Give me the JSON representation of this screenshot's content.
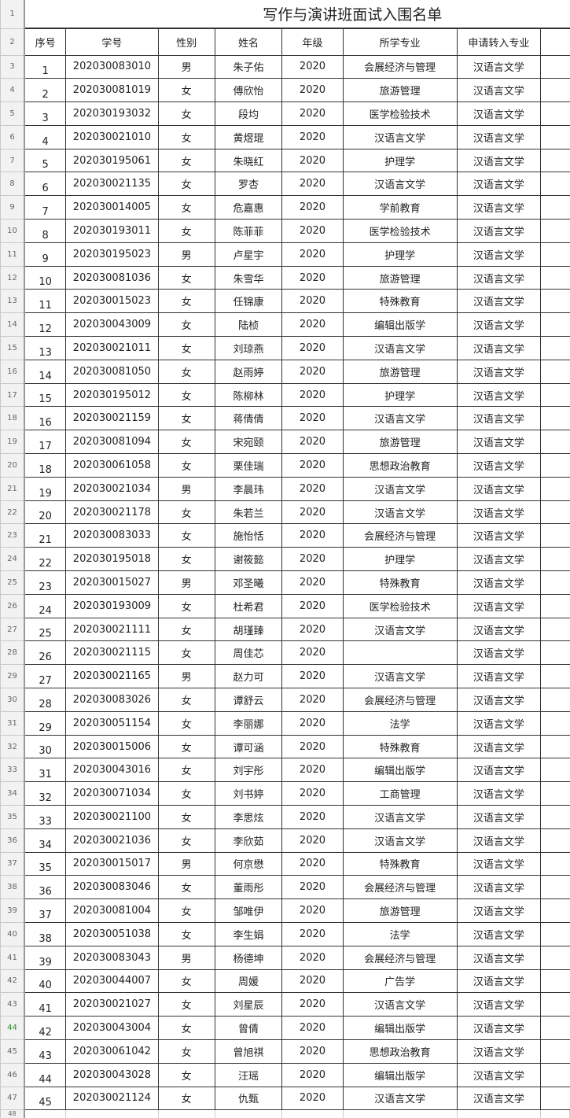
{
  "title": "写作与演讲班面试入围名单",
  "headers": [
    "序号",
    "学号",
    "性别",
    "姓名",
    "年级",
    "所学专业",
    "申请转入专业"
  ],
  "selected_row": 44,
  "selected_row_color": "#2e8b2e",
  "rows": [
    [
      "1",
      "202030083010",
      "男",
      "朱子佑",
      "2020",
      "会展经济与管理",
      "汉语言文学"
    ],
    [
      "2",
      "202030081019",
      "女",
      "傅欣怡",
      "2020",
      "旅游管理",
      "汉语言文学"
    ],
    [
      "3",
      "202030193032",
      "女",
      "段均",
      "2020",
      "医学检验技术",
      "汉语言文学"
    ],
    [
      "4",
      "202030021010",
      "女",
      "黄煜琨",
      "2020",
      "汉语言文学",
      "汉语言文学"
    ],
    [
      "5",
      "202030195061",
      "女",
      "朱晓红",
      "2020",
      "护理学",
      "汉语言文学"
    ],
    [
      "6",
      "202030021135",
      "女",
      "罗杏",
      "2020",
      "汉语言文学",
      "汉语言文学"
    ],
    [
      "7",
      "202030014005",
      "女",
      "危嘉惠",
      "2020",
      "学前教育",
      "汉语言文学"
    ],
    [
      "8",
      "202030193011",
      "女",
      "陈菲菲",
      "2020",
      "医学检验技术",
      "汉语言文学"
    ],
    [
      "9",
      "202030195023",
      "男",
      "卢星宇",
      "2020",
      "护理学",
      "汉语言文学"
    ],
    [
      "10",
      "202030081036",
      "女",
      "朱雪华",
      "2020",
      "旅游管理",
      "汉语言文学"
    ],
    [
      "11",
      "202030015023",
      "女",
      "任锦康",
      "2020",
      "特殊教育",
      "汉语言文学"
    ],
    [
      "12",
      "202030043009",
      "女",
      "陆桢",
      "2020",
      "编辑出版学",
      "汉语言文学"
    ],
    [
      "13",
      "202030021011",
      "女",
      "刘琼燕",
      "2020",
      "汉语言文学",
      "汉语言文学"
    ],
    [
      "14",
      "202030081050",
      "女",
      "赵雨婷",
      "2020",
      "旅游管理",
      "汉语言文学"
    ],
    [
      "15",
      "202030195012",
      "女",
      "陈柳林",
      "2020",
      "护理学",
      "汉语言文学"
    ],
    [
      "16",
      "202030021159",
      "女",
      "蒋倩倩",
      "2020",
      "汉语言文学",
      "汉语言文学"
    ],
    [
      "17",
      "202030081094",
      "女",
      "宋宛颐",
      "2020",
      "旅游管理",
      "汉语言文学"
    ],
    [
      "18",
      "202030061058",
      "女",
      "栗佳瑞",
      "2020",
      "思想政治教育",
      "汉语言文学"
    ],
    [
      "19",
      "202030021034",
      "男",
      "李晨玮",
      "2020",
      "汉语言文学",
      "汉语言文学"
    ],
    [
      "20",
      "202030021178",
      "女",
      "朱若兰",
      "2020",
      "汉语言文学",
      "汉语言文学"
    ],
    [
      "21",
      "202030083033",
      "女",
      "施怡恬",
      "2020",
      "会展经济与管理",
      "汉语言文学"
    ],
    [
      "22",
      "202030195018",
      "女",
      "谢筱懿",
      "2020",
      "护理学",
      "汉语言文学"
    ],
    [
      "23",
      "202030015027",
      "男",
      "邓圣曦",
      "2020",
      "特殊教育",
      "汉语言文学"
    ],
    [
      "24",
      "202030193009",
      "女",
      "杜希君",
      "2020",
      "医学检验技术",
      "汉语言文学"
    ],
    [
      "25",
      "202030021111",
      "女",
      "胡瑾臻",
      "2020",
      "汉语言文学",
      "汉语言文学"
    ],
    [
      "26",
      "202030021115",
      "女",
      "周佳芯",
      "2020",
      "",
      "汉语言文学"
    ],
    [
      "27",
      "202030021165",
      "男",
      "赵力可",
      "2020",
      "汉语言文学",
      "汉语言文学"
    ],
    [
      "28",
      "202030083026",
      "女",
      "谭舒云",
      "2020",
      "会展经济与管理",
      "汉语言文学"
    ],
    [
      "29",
      "202030051154",
      "女",
      "李丽娜",
      "2020",
      "法学",
      "汉语言文学"
    ],
    [
      "30",
      "202030015006",
      "女",
      "谭可涵",
      "2020",
      "特殊教育",
      "汉语言文学"
    ],
    [
      "31",
      "202030043016",
      "女",
      "刘宇彤",
      "2020",
      "编辑出版学",
      "汉语言文学"
    ],
    [
      "32",
      "202030071034",
      "女",
      "刘书婷",
      "2020",
      "工商管理",
      "汉语言文学"
    ],
    [
      "33",
      "202030021100",
      "女",
      "李思炫",
      "2020",
      "汉语言文学",
      "汉语言文学"
    ],
    [
      "34",
      "202030021036",
      "女",
      "李欣茹",
      "2020",
      "汉语言文学",
      "汉语言文学"
    ],
    [
      "35",
      "202030015017",
      "男",
      "何京懋",
      "2020",
      "特殊教育",
      "汉语言文学"
    ],
    [
      "36",
      "202030083046",
      "女",
      "董雨彤",
      "2020",
      "会展经济与管理",
      "汉语言文学"
    ],
    [
      "37",
      "202030081004",
      "女",
      "邹唯伊",
      "2020",
      "旅游管理",
      "汉语言文学"
    ],
    [
      "38",
      "202030051038",
      "女",
      "李生娟",
      "2020",
      "法学",
      "汉语言文学"
    ],
    [
      "39",
      "202030083043",
      "男",
      "杨德坤",
      "2020",
      "会展经济与管理",
      "汉语言文学"
    ],
    [
      "40",
      "202030044007",
      "女",
      "周媛",
      "2020",
      "广告学",
      "汉语言文学"
    ],
    [
      "41",
      "202030021027",
      "女",
      "刘星辰",
      "2020",
      "汉语言文学",
      "汉语言文学"
    ],
    [
      "42",
      "202030043004",
      "女",
      "曾倩",
      "2020",
      "编辑出版学",
      "汉语言文学"
    ],
    [
      "43",
      "202030061042",
      "女",
      "曾旭祺",
      "2020",
      "思想政治教育",
      "汉语言文学"
    ],
    [
      "44",
      "202030043028",
      "女",
      "汪瑶",
      "2020",
      "编辑出版学",
      "汉语言文学"
    ],
    [
      "45",
      "202030021124",
      "女",
      "仇甄",
      "2020",
      "汉语言文学",
      "汉语言文学"
    ]
  ]
}
